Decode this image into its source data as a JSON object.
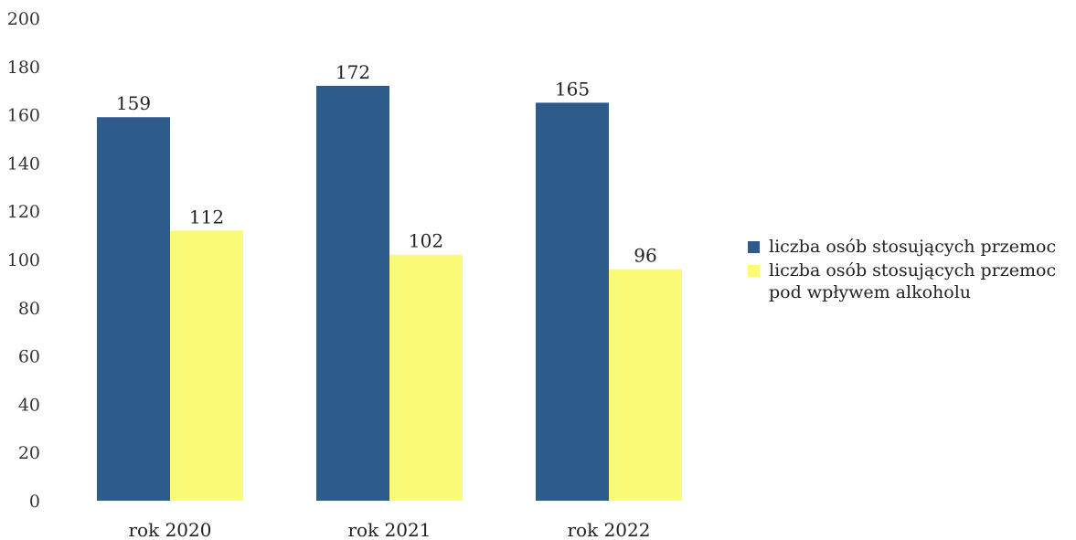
{
  "chart_data": {
    "type": "bar",
    "categories": [
      "rok 2020",
      "rok 2021",
      "rok 2022"
    ],
    "series": [
      {
        "name": "liczba osób stosujących przemoc",
        "values": [
          159,
          172,
          165
        ],
        "color": "#2c5b8c"
      },
      {
        "name": "liczba osób stosujących przemoc\npod wpływem alkoholu",
        "values": [
          112,
          102,
          96
        ],
        "color": "#fbfb78"
      }
    ],
    "ylim": [
      0,
      200
    ],
    "yticks": [
      0,
      20,
      40,
      60,
      80,
      100,
      120,
      140,
      160,
      180,
      200
    ],
    "grid": false,
    "legend": "right"
  }
}
